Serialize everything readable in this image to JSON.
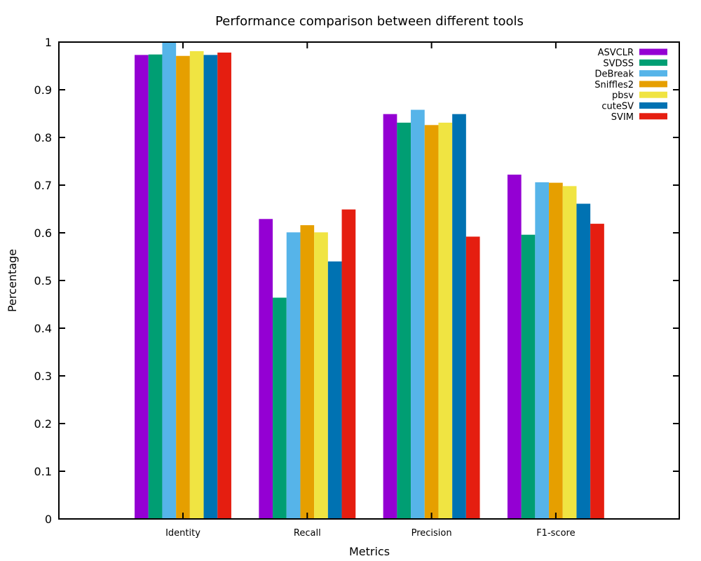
{
  "chart_data": {
    "type": "bar",
    "title": "Performance comparison between different tools",
    "xlabel": "Metrics",
    "ylabel": "Percentage",
    "ylim": [
      0,
      1
    ],
    "yticks": [
      "0",
      "0.1",
      "0.2",
      "0.3",
      "0.4",
      "0.5",
      "0.6",
      "0.7",
      "0.8",
      "0.9",
      "1"
    ],
    "categories": [
      "Identity",
      "Recall",
      "Precision",
      "F1-score"
    ],
    "legend_position": "top-right",
    "grid": false,
    "series": [
      {
        "name": "ASVCLR",
        "color": "#9400d3",
        "values": [
          0.973,
          0.629,
          0.849,
          0.722
        ]
      },
      {
        "name": "SVDSS",
        "color": "#009e73",
        "values": [
          0.974,
          0.464,
          0.831,
          0.596
        ]
      },
      {
        "name": "DeBreak",
        "color": "#56b4e9",
        "values": [
          1.0,
          0.601,
          0.858,
          0.706
        ]
      },
      {
        "name": "Sniffles2",
        "color": "#e69f00",
        "values": [
          0.971,
          0.616,
          0.826,
          0.705
        ]
      },
      {
        "name": "pbsv",
        "color": "#f0e442",
        "values": [
          0.981,
          0.601,
          0.831,
          0.698
        ]
      },
      {
        "name": "cuteSV",
        "color": "#0072b2",
        "values": [
          0.973,
          0.54,
          0.849,
          0.661
        ]
      },
      {
        "name": "SVIM",
        "color": "#e51e10",
        "values": [
          0.978,
          0.649,
          0.592,
          0.619
        ]
      }
    ]
  }
}
